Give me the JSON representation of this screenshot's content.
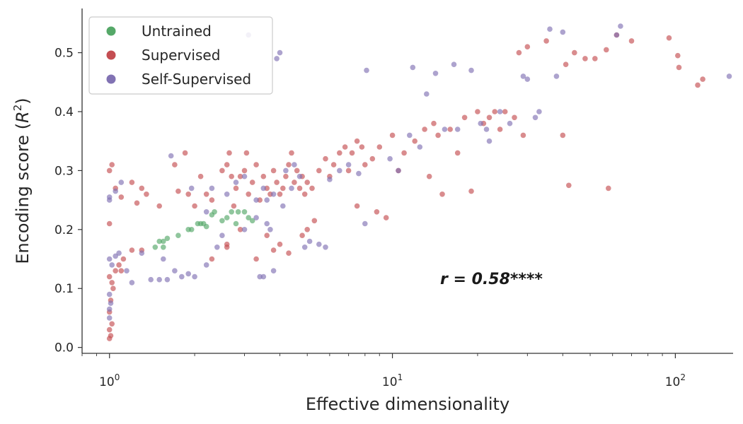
{
  "chart_data": {
    "type": "scatter",
    "xlabel": "Effective dimensionality",
    "ylabel": "Encoding score (R²)",
    "ylabel_main": "Encoding score (",
    "ylabel_R": "R",
    "ylabel_sup": "2",
    "ylabel_close": ")",
    "xscale": "log",
    "xlim": [
      0.8,
      160
    ],
    "ylim": [
      -0.01,
      0.575
    ],
    "x_ticks": [
      {
        "value": 1,
        "base": "10",
        "exp": "0"
      },
      {
        "value": 10,
        "base": "10",
        "exp": "1"
      },
      {
        "value": 100,
        "base": "10",
        "exp": "2"
      }
    ],
    "y_ticks": [
      {
        "value": 0.0,
        "label": "0.0"
      },
      {
        "value": 0.1,
        "label": "0.1"
      },
      {
        "value": 0.2,
        "label": "0.2"
      },
      {
        "value": 0.3,
        "label": "0.3"
      },
      {
        "value": 0.4,
        "label": "0.4"
      },
      {
        "value": 0.5,
        "label": "0.5"
      }
    ],
    "legend": {
      "position": "upper-left"
    },
    "annotation": "r = 0.58****",
    "series": [
      {
        "name": "Untrained",
        "color": "#55a868",
        "points": [
          [
            1.45,
            0.17
          ],
          [
            1.5,
            0.18
          ],
          [
            1.55,
            0.18
          ],
          [
            1.6,
            0.185
          ],
          [
            1.75,
            0.19
          ],
          [
            1.9,
            0.2
          ],
          [
            1.95,
            0.2
          ],
          [
            2.05,
            0.21
          ],
          [
            2.1,
            0.21
          ],
          [
            2.15,
            0.21
          ],
          [
            2.2,
            0.205
          ],
          [
            2.3,
            0.225
          ],
          [
            2.5,
            0.215
          ],
          [
            2.6,
            0.22
          ],
          [
            2.7,
            0.23
          ],
          [
            2.8,
            0.21
          ],
          [
            2.85,
            0.23
          ],
          [
            3.0,
            0.23
          ],
          [
            3.1,
            0.22
          ],
          [
            3.2,
            0.215
          ],
          [
            2.35,
            0.23
          ],
          [
            1.55,
            0.17
          ]
        ]
      },
      {
        "name": "Supervised",
        "color": "#c44e52",
        "points": [
          [
            1.0,
            0.015
          ],
          [
            1.01,
            0.02
          ],
          [
            1.0,
            0.03
          ],
          [
            1.02,
            0.04
          ],
          [
            1.0,
            0.06
          ],
          [
            1.01,
            0.08
          ],
          [
            1.03,
            0.1
          ],
          [
            1.0,
            0.12
          ],
          [
            1.05,
            0.13
          ],
          [
            1.1,
            0.13
          ],
          [
            1.02,
            0.11
          ],
          [
            1.08,
            0.14
          ],
          [
            1.12,
            0.15
          ],
          [
            1.0,
            0.21
          ],
          [
            1.0,
            0.3
          ],
          [
            1.02,
            0.31
          ],
          [
            1.05,
            0.27
          ],
          [
            1.1,
            0.255
          ],
          [
            1.2,
            0.28
          ],
          [
            1.3,
            0.27
          ],
          [
            1.35,
            0.26
          ],
          [
            1.25,
            0.245
          ],
          [
            1.2,
            0.165
          ],
          [
            1.3,
            0.165
          ],
          [
            1.5,
            0.24
          ],
          [
            1.7,
            0.31
          ],
          [
            1.75,
            0.265
          ],
          [
            1.85,
            0.33
          ],
          [
            1.9,
            0.26
          ],
          [
            2.0,
            0.24
          ],
          [
            2.1,
            0.29
          ],
          [
            2.2,
            0.26
          ],
          [
            2.3,
            0.25
          ],
          [
            2.5,
            0.3
          ],
          [
            2.6,
            0.31
          ],
          [
            2.65,
            0.33
          ],
          [
            2.7,
            0.29
          ],
          [
            2.75,
            0.24
          ],
          [
            2.8,
            0.27
          ],
          [
            2.9,
            0.29
          ],
          [
            3.0,
            0.3
          ],
          [
            3.05,
            0.33
          ],
          [
            3.1,
            0.26
          ],
          [
            3.2,
            0.28
          ],
          [
            3.3,
            0.31
          ],
          [
            3.4,
            0.25
          ],
          [
            3.5,
            0.29
          ],
          [
            3.6,
            0.27
          ],
          [
            3.7,
            0.26
          ],
          [
            3.8,
            0.3
          ],
          [
            3.9,
            0.28
          ],
          [
            4.0,
            0.26
          ],
          [
            4.1,
            0.27
          ],
          [
            4.2,
            0.29
          ],
          [
            4.3,
            0.31
          ],
          [
            4.4,
            0.33
          ],
          [
            4.5,
            0.28
          ],
          [
            4.6,
            0.3
          ],
          [
            4.7,
            0.27
          ],
          [
            4.8,
            0.29
          ],
          [
            4.9,
            0.26
          ],
          [
            5.0,
            0.28
          ],
          [
            5.2,
            0.27
          ],
          [
            5.5,
            0.3
          ],
          [
            5.8,
            0.32
          ],
          [
            6.0,
            0.29
          ],
          [
            6.2,
            0.31
          ],
          [
            6.5,
            0.33
          ],
          [
            6.8,
            0.34
          ],
          [
            7.0,
            0.3
          ],
          [
            7.2,
            0.33
          ],
          [
            7.5,
            0.35
          ],
          [
            7.8,
            0.34
          ],
          [
            8.0,
            0.31
          ],
          [
            8.5,
            0.32
          ],
          [
            9.0,
            0.34
          ],
          [
            9.5,
            0.22
          ],
          [
            10.0,
            0.36
          ],
          [
            10.5,
            0.3
          ],
          [
            11.0,
            0.33
          ],
          [
            12.0,
            0.35
          ],
          [
            13.0,
            0.37
          ],
          [
            13.5,
            0.29
          ],
          [
            14.0,
            0.38
          ],
          [
            14.5,
            0.36
          ],
          [
            15.0,
            0.26
          ],
          [
            16.0,
            0.37
          ],
          [
            17.0,
            0.33
          ],
          [
            18.0,
            0.39
          ],
          [
            19.0,
            0.265
          ],
          [
            20.0,
            0.4
          ],
          [
            21.0,
            0.38
          ],
          [
            22.0,
            0.39
          ],
          [
            23.0,
            0.4
          ],
          [
            24.0,
            0.37
          ],
          [
            25.0,
            0.4
          ],
          [
            27.0,
            0.39
          ],
          [
            28.0,
            0.5
          ],
          [
            30.0,
            0.51
          ],
          [
            29.0,
            0.36
          ],
          [
            35.0,
            0.52
          ],
          [
            40.0,
            0.36
          ],
          [
            41.0,
            0.48
          ],
          [
            42.0,
            0.275
          ],
          [
            44.0,
            0.5
          ],
          [
            48.0,
            0.49
          ],
          [
            52.0,
            0.49
          ],
          [
            57.0,
            0.505
          ],
          [
            58.0,
            0.27
          ],
          [
            62.0,
            0.53
          ],
          [
            70.0,
            0.52
          ],
          [
            95.0,
            0.525
          ],
          [
            102.0,
            0.495
          ],
          [
            103.0,
            0.475
          ],
          [
            120.0,
            0.445
          ],
          [
            125.0,
            0.455
          ],
          [
            2.6,
            0.17
          ],
          [
            2.9,
            0.2
          ],
          [
            3.3,
            0.15
          ],
          [
            3.6,
            0.19
          ],
          [
            3.8,
            0.165
          ],
          [
            4.0,
            0.175
          ],
          [
            4.3,
            0.16
          ],
          [
            4.8,
            0.19
          ],
          [
            5.0,
            0.2
          ],
          [
            5.3,
            0.215
          ],
          [
            2.3,
            0.15
          ],
          [
            2.6,
            0.175
          ],
          [
            8.8,
            0.23
          ],
          [
            7.5,
            0.24
          ]
        ]
      },
      {
        "name": "Self-Supervised",
        "color": "#8172b3",
        "points": [
          [
            1.0,
            0.05
          ],
          [
            1.0,
            0.065
          ],
          [
            1.01,
            0.075
          ],
          [
            1.0,
            0.09
          ],
          [
            1.02,
            0.14
          ],
          [
            1.0,
            0.15
          ],
          [
            1.05,
            0.155
          ],
          [
            1.08,
            0.16
          ],
          [
            1.15,
            0.13
          ],
          [
            1.2,
            0.11
          ],
          [
            1.3,
            0.16
          ],
          [
            1.4,
            0.115
          ],
          [
            1.5,
            0.115
          ],
          [
            1.55,
            0.15
          ],
          [
            1.6,
            0.115
          ],
          [
            1.7,
            0.13
          ],
          [
            1.8,
            0.12
          ],
          [
            1.9,
            0.125
          ],
          [
            2.0,
            0.12
          ],
          [
            2.2,
            0.14
          ],
          [
            2.4,
            0.17
          ],
          [
            1.0,
            0.25
          ],
          [
            1.05,
            0.265
          ],
          [
            1.1,
            0.28
          ],
          [
            1.0,
            0.255
          ],
          [
            1.65,
            0.325
          ],
          [
            1.95,
            0.27
          ],
          [
            2.2,
            0.23
          ],
          [
            2.3,
            0.27
          ],
          [
            2.6,
            0.26
          ],
          [
            2.8,
            0.28
          ],
          [
            3.0,
            0.29
          ],
          [
            3.1,
            0.53
          ],
          [
            3.3,
            0.25
          ],
          [
            3.5,
            0.27
          ],
          [
            3.6,
            0.21
          ],
          [
            3.7,
            0.2
          ],
          [
            3.8,
            0.26
          ],
          [
            3.9,
            0.49
          ],
          [
            4.0,
            0.5
          ],
          [
            4.2,
            0.3
          ],
          [
            4.4,
            0.27
          ],
          [
            4.5,
            0.31
          ],
          [
            4.7,
            0.29
          ],
          [
            4.9,
            0.17
          ],
          [
            5.1,
            0.18
          ],
          [
            5.5,
            0.175
          ],
          [
            5.8,
            0.17
          ],
          [
            6.0,
            0.285
          ],
          [
            6.5,
            0.3
          ],
          [
            7.0,
            0.31
          ],
          [
            7.6,
            0.295
          ],
          [
            8.0,
            0.21
          ],
          [
            8.1,
            0.47
          ],
          [
            9.8,
            0.32
          ],
          [
            10.5,
            0.3
          ],
          [
            11.5,
            0.36
          ],
          [
            11.8,
            0.475
          ],
          [
            12.5,
            0.34
          ],
          [
            13.2,
            0.43
          ],
          [
            14.2,
            0.465
          ],
          [
            15.3,
            0.37
          ],
          [
            16.5,
            0.48
          ],
          [
            17.0,
            0.37
          ],
          [
            19.0,
            0.47
          ],
          [
            20.5,
            0.38
          ],
          [
            21.5,
            0.37
          ],
          [
            22.0,
            0.35
          ],
          [
            24.0,
            0.4
          ],
          [
            26.0,
            0.38
          ],
          [
            29.0,
            0.46
          ],
          [
            30.0,
            0.455
          ],
          [
            32.0,
            0.39
          ],
          [
            33.0,
            0.4
          ],
          [
            36.0,
            0.54
          ],
          [
            40.0,
            0.535
          ],
          [
            38.0,
            0.46
          ],
          [
            62.0,
            0.53
          ],
          [
            64.0,
            0.545
          ],
          [
            155.0,
            0.46
          ],
          [
            3.4,
            0.12
          ],
          [
            3.5,
            0.12
          ],
          [
            3.8,
            0.13
          ],
          [
            2.5,
            0.19
          ],
          [
            3.0,
            0.2
          ],
          [
            3.3,
            0.22
          ],
          [
            3.6,
            0.25
          ],
          [
            4.1,
            0.24
          ]
        ]
      }
    ]
  }
}
